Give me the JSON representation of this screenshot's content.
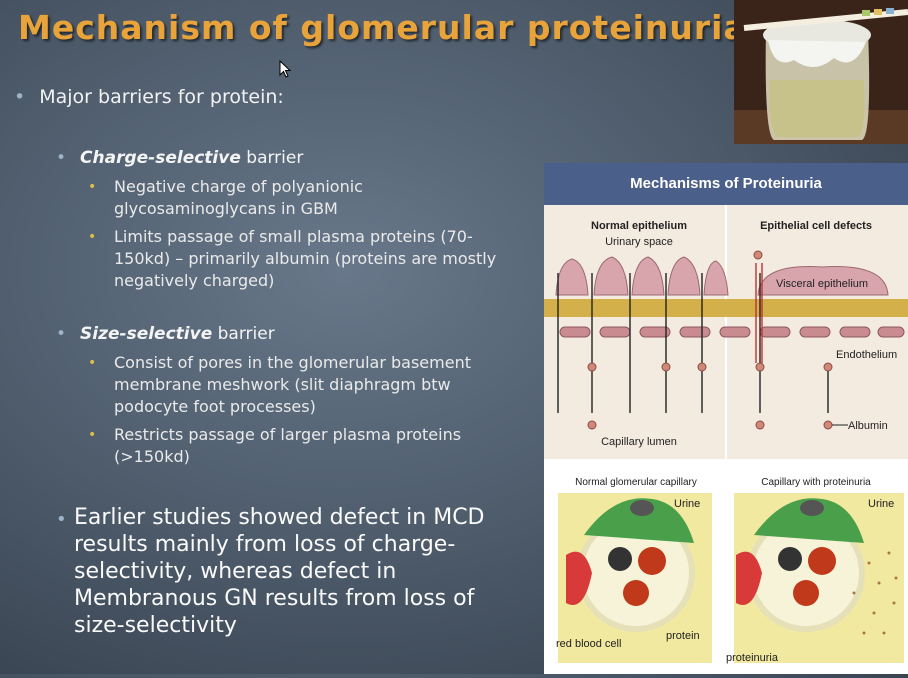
{
  "title": "Mechanism of glomerular proteinuria",
  "main_bullet": "Major barriers for protein:",
  "charge": {
    "heading_em": "Charge-selective",
    "heading_rest": " barrier",
    "items": [
      "Negative charge of polyanionic glycosaminoglycans in GBM",
      "Limits passage of small plasma proteins (70-150kd) – primarily albumin (proteins are mostly negatively charged)"
    ]
  },
  "size": {
    "heading_em": "Size-selective",
    "heading_rest": " barrier",
    "items": [
      "Consist of pores in the glomerular basement membrane meshwork (slit diaphragm btw podocyte foot processes)",
      "Restricts passage of larger plasma proteins (>150kd)"
    ]
  },
  "conclusion": "Earlier studies showed defect in MCD results mainly from loss of charge-selectivity, whereas defect in Membranous GN results from loss of size-selectivity",
  "figure": {
    "header": "Mechanisms of Proteinuria",
    "normal_epithelium": "Normal epithelium",
    "urinary_space": "Urinary space",
    "epithelial_defects": "Epithelial cell defects",
    "visceral_epithelium": "Visceral epithelium",
    "endothelium": "Endothelium",
    "albumin": "Albumin",
    "capillary_lumen": "Capillary lumen",
    "normal_capillary": "Normal glomerular capillary",
    "capillary_proteinuria": "Capillary with proteinuria",
    "urine": "Urine",
    "protein": "protein",
    "red_blood_cell": "red blood cell",
    "proteinuria": "proteinuria"
  },
  "colors": {
    "title": "#e8a33a",
    "figure_header": "#4a5f8a",
    "sub_bullet": "#d6c244"
  }
}
